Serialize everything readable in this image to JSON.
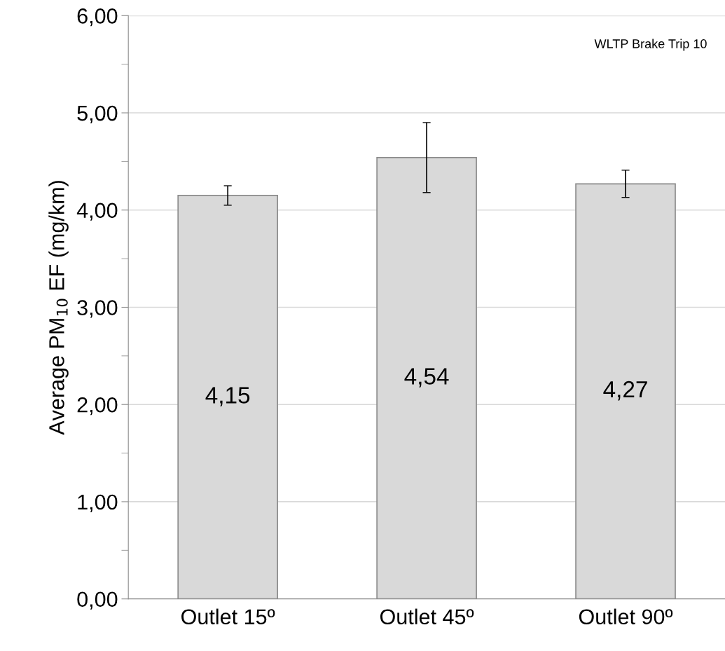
{
  "chart_data": {
    "type": "bar",
    "ylabel": "Average PM$_{10}$ EF (mg/km)",
    "categories": [
      "Outlet 15º",
      "Outlet 45º",
      "Outlet 90º"
    ],
    "values": [
      4.15,
      4.54,
      4.27
    ],
    "color": "#d9d9d9",
    "errors": [
      0.1,
      0.36,
      0.14
    ],
    "value_labels": [
      "4,15",
      "4,54",
      "4,27"
    ],
    "ylim": [
      0,
      6
    ],
    "yticks": [
      {
        "value": 0,
        "label": "0,00"
      },
      {
        "value": 0.5,
        "label": null
      },
      {
        "value": 1,
        "label": "1,00"
      },
      {
        "value": 1.5,
        "label": null
      },
      {
        "value": 2,
        "label": "2,00"
      },
      {
        "value": 2.5,
        "label": null
      },
      {
        "value": 3,
        "label": "3,00"
      },
      {
        "value": 3.5,
        "label": null
      },
      {
        "value": 4,
        "label": "4,00"
      },
      {
        "value": 4.5,
        "label": null
      },
      {
        "value": 5,
        "label": "5,00"
      },
      {
        "value": 5.5,
        "label": null
      },
      {
        "value": 6,
        "label": "6,00"
      }
    ],
    "grid": "y",
    "annotations": [
      "WLTP Brake Trip 10"
    ]
  }
}
